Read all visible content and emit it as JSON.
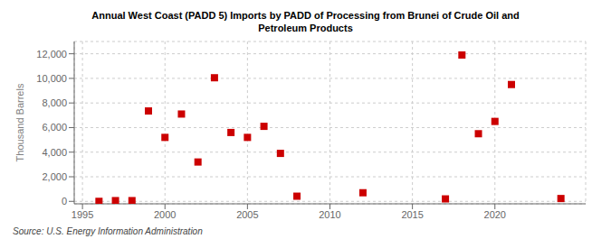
{
  "chart_data": {
    "type": "scatter",
    "title": "Annual West Coast (PADD 5) Imports by PADD of Processing from Brunei of Crude Oil and\nPetroleum Products",
    "ylabel": "Thousand Barrels",
    "annotations": [
      "Source: U.S. Energy Information Administration"
    ],
    "x": [
      1996,
      1997,
      1998,
      1999,
      2000,
      2001,
      2002,
      2003,
      2004,
      2005,
      2006,
      2007,
      2008,
      2012,
      2017,
      2018,
      2019,
      2020,
      2021,
      2024
    ],
    "values": [
      0,
      60,
      60,
      7350,
      5200,
      7100,
      3200,
      10050,
      5600,
      5200,
      6100,
      3900,
      420,
      700,
      200,
      11900,
      5500,
      6500,
      9500,
      230
    ],
    "color": "#cc0000",
    "marker": "square",
    "xlim": [
      1994.5,
      2025.5
    ],
    "ylim": [
      -200,
      13000
    ],
    "xticks": [
      1995,
      2000,
      2005,
      2010,
      2015,
      2020
    ],
    "yticks": [
      {
        "value": 0,
        "label": "0"
      },
      {
        "value": 2000,
        "label": "2,000"
      },
      {
        "value": 4000,
        "label": "4,000"
      },
      {
        "value": 6000,
        "label": "6,000"
      },
      {
        "value": 8000,
        "label": "8,000"
      },
      {
        "value": 10000,
        "label": "10,000"
      },
      {
        "value": 12000,
        "label": "12,000"
      }
    ],
    "grid": true
  }
}
